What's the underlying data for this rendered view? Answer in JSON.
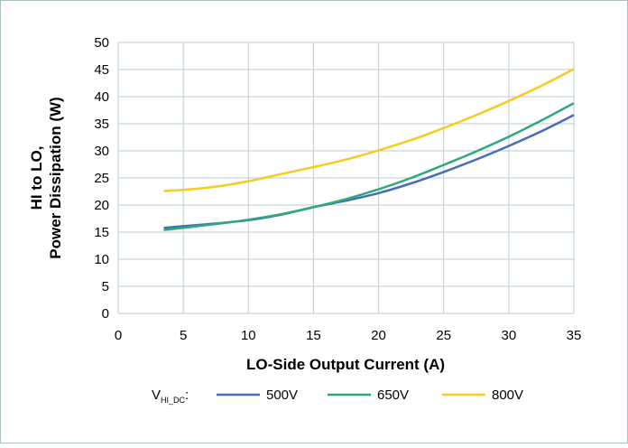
{
  "chart_data": {
    "type": "line",
    "xlabel": "LO-Side Output Current (A)",
    "ylabel_lines": [
      "HI to LO,",
      "Power Dissipation (W)"
    ],
    "xlim": [
      0,
      35
    ],
    "ylim": [
      0,
      50
    ],
    "xticks": [
      0,
      5,
      10,
      15,
      20,
      25,
      30,
      35
    ],
    "yticks": [
      0,
      5,
      10,
      15,
      20,
      25,
      30,
      35,
      40,
      45,
      50
    ],
    "grid": true,
    "legend": {
      "placement": "bottom",
      "prefix_main": "V",
      "prefix_sub": "HI_DC",
      "prefix_suffix": ":"
    },
    "series": [
      {
        "name": "500V",
        "color": "#4a6bb8",
        "points": [
          [
            3.5,
            15.8
          ],
          [
            5,
            16.1
          ],
          [
            7.5,
            16.6
          ],
          [
            10,
            17.2
          ],
          [
            12.5,
            18.2
          ],
          [
            15,
            19.6
          ],
          [
            17.5,
            20.8
          ],
          [
            20,
            22.2
          ],
          [
            22.5,
            24.0
          ],
          [
            25,
            26.1
          ],
          [
            27.5,
            28.4
          ],
          [
            30,
            30.9
          ],
          [
            32.5,
            33.6
          ],
          [
            35,
            36.6
          ]
        ]
      },
      {
        "name": "650V",
        "color": "#2eaa7a",
        "points": [
          [
            3.5,
            15.4
          ],
          [
            5,
            15.8
          ],
          [
            7.5,
            16.5
          ],
          [
            10,
            17.3
          ],
          [
            12.5,
            18.3
          ],
          [
            15,
            19.6
          ],
          [
            17.5,
            21.1
          ],
          [
            20,
            22.9
          ],
          [
            22.5,
            25.0
          ],
          [
            25,
            27.4
          ],
          [
            27.5,
            29.9
          ],
          [
            30,
            32.6
          ],
          [
            32.5,
            35.6
          ],
          [
            35,
            38.8
          ]
        ]
      },
      {
        "name": "800V",
        "color": "#f5cc1d",
        "points": [
          [
            3.5,
            22.6
          ],
          [
            5,
            22.8
          ],
          [
            7.5,
            23.4
          ],
          [
            10,
            24.4
          ],
          [
            12.5,
            25.7
          ],
          [
            15,
            27.0
          ],
          [
            17.5,
            28.4
          ],
          [
            20,
            30.1
          ],
          [
            22.5,
            32.0
          ],
          [
            25,
            34.2
          ],
          [
            27.5,
            36.6
          ],
          [
            30,
            39.2
          ],
          [
            32.5,
            42.0
          ],
          [
            35,
            45.1
          ]
        ]
      }
    ]
  },
  "colors": {
    "frame": "#a8bfc3",
    "grid": "#b9cdd0",
    "background": "#ffffff"
  }
}
